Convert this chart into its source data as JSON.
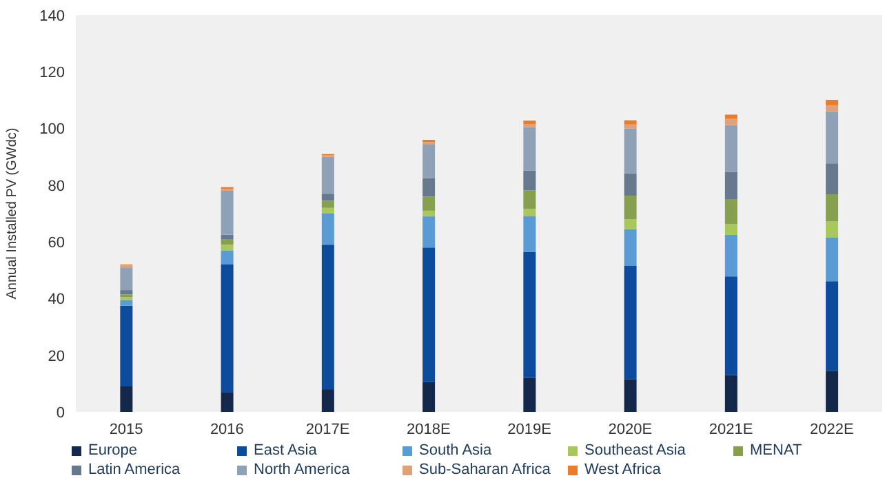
{
  "chart_data": {
    "type": "bar",
    "stacked": true,
    "ylabel": "Annual Installed PV (GWdc)",
    "categories": [
      "2015",
      "2016",
      "2017E",
      "2018E",
      "2019E",
      "2020E",
      "2021E",
      "2022E"
    ],
    "series": [
      {
        "name": "Europe",
        "color": "#13284a",
        "values": [
          9,
          7,
          8,
          10.5,
          12,
          11.5,
          13,
          14.5
        ]
      },
      {
        "name": "East Asia",
        "color": "#0d4b9c",
        "values": [
          28.5,
          45,
          51,
          47.5,
          44.5,
          40,
          34.8,
          31.6
        ]
      },
      {
        "name": "South Asia",
        "color": "#5b9bd5",
        "values": [
          2,
          5,
          11,
          11,
          12.5,
          13,
          14.7,
          15.5
        ]
      },
      {
        "name": "Southeast Asia",
        "color": "#a9c85c",
        "values": [
          1,
          2,
          2,
          2,
          2.7,
          3.5,
          3.8,
          5.6
        ]
      },
      {
        "name": "MENAT",
        "color": "#86a04f",
        "values": [
          1,
          2,
          2.5,
          5,
          6.5,
          8.3,
          8.8,
          9.6
        ]
      },
      {
        "name": "Latin America",
        "color": "#66798e",
        "values": [
          1.5,
          1.5,
          2.5,
          6.5,
          7,
          7.9,
          9.6,
          10.9
        ]
      },
      {
        "name": "North America",
        "color": "#8ea1b6",
        "values": [
          8,
          15.5,
          13,
          12,
          15.3,
          15.8,
          16.5,
          18.4
        ]
      },
      {
        "name": "Sub-Saharan Africa",
        "color": "#e0a17a",
        "values": [
          0.7,
          0.7,
          0.5,
          0.7,
          1,
          1.4,
          2.2,
          2.1
        ]
      },
      {
        "name": "West Africa",
        "color": "#ea7c2c",
        "values": [
          0.3,
          0.6,
          0.5,
          0.8,
          1.3,
          1.5,
          1.5,
          1.9
        ]
      }
    ],
    "ylim": [
      0,
      140
    ],
    "yticks": [
      0,
      20,
      40,
      60,
      80,
      100,
      120,
      140
    ],
    "grid": false,
    "legend": "bottom"
  }
}
